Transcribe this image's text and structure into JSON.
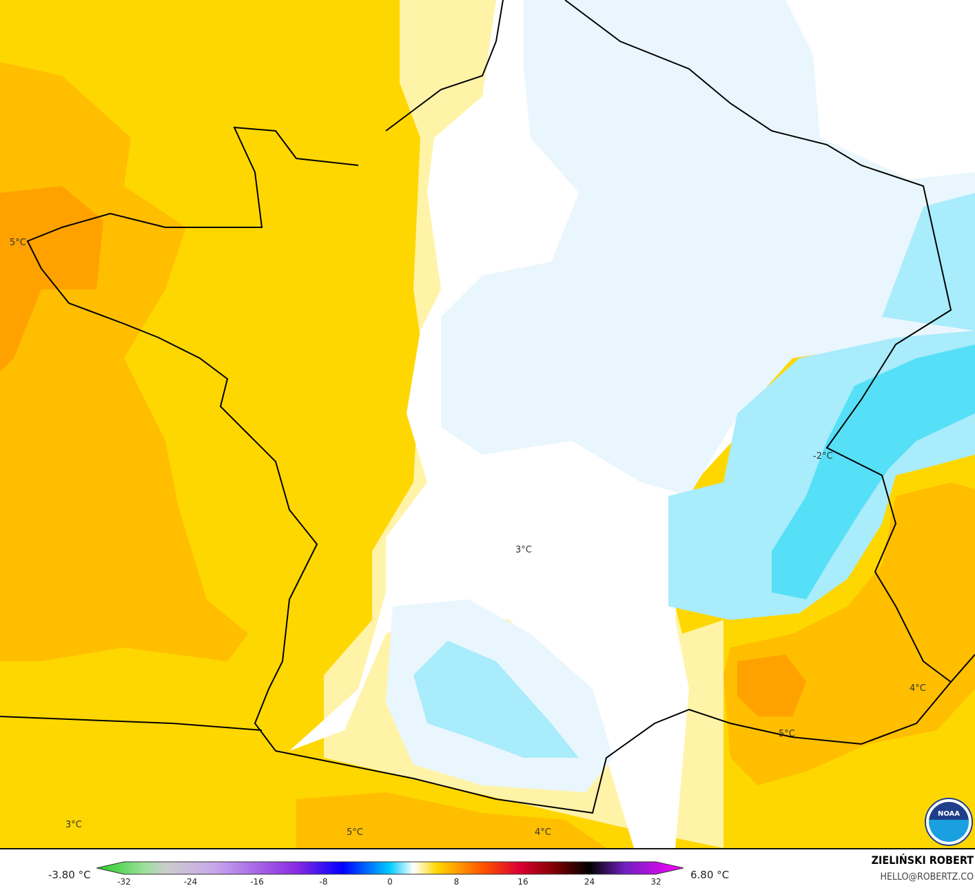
{
  "map": {
    "variable": "temperature",
    "contour_labels": [
      {
        "text": "5°C",
        "region": "brittany"
      },
      {
        "text": "3°C",
        "region": "massif-central"
      },
      {
        "text": "-2°C",
        "region": "alps"
      },
      {
        "text": "3°C",
        "region": "southwest-spain"
      },
      {
        "text": "5°C",
        "region": "pyrenees"
      },
      {
        "text": "4°C",
        "region": "pyrenees-east"
      },
      {
        "text": "5°C",
        "region": "provence"
      },
      {
        "text": "4°C",
        "region": "liguria"
      }
    ],
    "colors": {
      "orange": "#ffb300",
      "yellow": "#ffd700",
      "light_yellow": "#fff3a8",
      "white": "#ffffff",
      "pale_blue": "#eaf6fd",
      "light_blue": "#a9ecfb",
      "cyan": "#55e0f8"
    }
  },
  "legend": {
    "min_label": "-3.80 °C",
    "max_label": "6.80 °C",
    "ticks": [
      "-32",
      "-24",
      "-16",
      "-8",
      "0",
      "8",
      "16",
      "24",
      "32"
    ],
    "range": [
      -32,
      32
    ]
  },
  "credit": {
    "name": "ZIELIŃSKI ROBERT",
    "email": "HELLO@ROBERTZ.CO"
  },
  "logo": {
    "text": "NOAA"
  }
}
